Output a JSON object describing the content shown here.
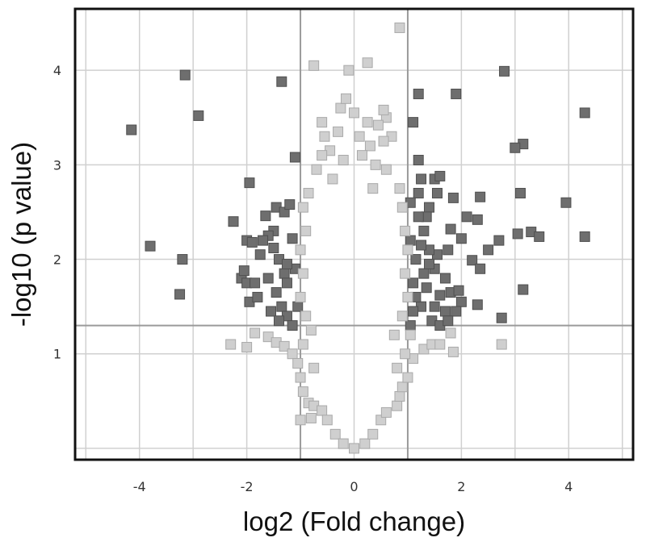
{
  "chart_data": {
    "type": "scatter",
    "title": "",
    "xlabel": "log2 (Fold change)",
    "ylabel": "-log10 (p value)",
    "xlim": [
      -5.2,
      5.2
    ],
    "ylim": [
      -0.12,
      4.65
    ],
    "xticks": [
      -4,
      -2,
      0,
      2,
      4
    ],
    "xtick_labels": [
      "-4",
      "-2",
      "0",
      "2",
      "4"
    ],
    "yticks": [
      1,
      2,
      3,
      4
    ],
    "ytick_labels": [
      "1",
      "2",
      "3",
      "4"
    ],
    "grid": true,
    "legend": "none",
    "threshold_lines": {
      "x": [
        -1,
        1
      ],
      "y": 1.3
    },
    "colors": {
      "significant": "#6e6e6e",
      "not_significant": "#cfcfcf",
      "grid": "#d0d0d0",
      "threshold": "#9a9a9a",
      "frame": "#111111"
    },
    "series": [
      {
        "values_xy": [
          [
            -4.15,
            3.37
          ],
          [
            -3.15,
            3.95
          ],
          [
            -2.9,
            3.52
          ],
          [
            -3.8,
            2.14
          ],
          [
            -3.2,
            2.0
          ],
          [
            -3.25,
            1.63
          ],
          [
            -2.25,
            2.4
          ],
          [
            -1.95,
            2.81
          ],
          [
            -1.35,
            3.88
          ],
          [
            -1.1,
            3.08
          ],
          [
            -2.0,
            2.2
          ],
          [
            -1.9,
            2.18
          ],
          [
            -1.65,
            2.46
          ],
          [
            -1.45,
            2.55
          ],
          [
            -1.3,
            2.5
          ],
          [
            -1.2,
            2.58
          ],
          [
            -1.5,
            2.3
          ],
          [
            -1.6,
            2.25
          ],
          [
            -1.75,
            2.05
          ],
          [
            -1.4,
            2.0
          ],
          [
            -1.3,
            1.85
          ],
          [
            -1.25,
            1.75
          ],
          [
            -1.6,
            1.8
          ],
          [
            -1.45,
            1.65
          ],
          [
            -1.35,
            1.5
          ],
          [
            -1.55,
            1.45
          ],
          [
            -1.25,
            1.4
          ],
          [
            -1.4,
            1.35
          ],
          [
            -1.15,
            1.3
          ],
          [
            -2.1,
            1.8
          ],
          [
            -2.0,
            1.75
          ],
          [
            -1.85,
            1.75
          ],
          [
            -2.05,
            1.88
          ],
          [
            -1.95,
            1.55
          ],
          [
            -1.8,
            1.6
          ],
          [
            -1.1,
            1.9
          ],
          [
            -1.15,
            2.22
          ],
          [
            -1.05,
            1.5
          ],
          [
            -1.25,
            1.95
          ],
          [
            -1.5,
            2.12
          ],
          [
            -1.7,
            2.2
          ],
          [
            2.8,
            3.99
          ],
          [
            4.3,
            3.55
          ],
          [
            1.9,
            3.75
          ],
          [
            1.2,
            3.75
          ],
          [
            1.1,
            3.45
          ],
          [
            3.15,
            3.22
          ],
          [
            3.0,
            3.18
          ],
          [
            1.2,
            3.05
          ],
          [
            1.25,
            2.85
          ],
          [
            1.5,
            2.85
          ],
          [
            1.6,
            2.88
          ],
          [
            1.85,
            2.65
          ],
          [
            2.35,
            2.66
          ],
          [
            3.1,
            2.7
          ],
          [
            3.95,
            2.6
          ],
          [
            2.1,
            2.45
          ],
          [
            2.3,
            2.42
          ],
          [
            2.5,
            2.1
          ],
          [
            2.7,
            2.2
          ],
          [
            3.05,
            2.27
          ],
          [
            3.3,
            2.29
          ],
          [
            3.45,
            2.24
          ],
          [
            4.3,
            2.24
          ],
          [
            2.0,
            2.22
          ],
          [
            1.75,
            2.1
          ],
          [
            1.55,
            2.05
          ],
          [
            1.4,
            2.1
          ],
          [
            1.25,
            2.15
          ],
          [
            1.15,
            2.0
          ],
          [
            1.3,
            1.85
          ],
          [
            1.5,
            1.9
          ],
          [
            1.7,
            1.8
          ],
          [
            2.2,
            1.99
          ],
          [
            2.35,
            1.9
          ],
          [
            1.1,
            1.75
          ],
          [
            1.35,
            1.7
          ],
          [
            1.6,
            1.62
          ],
          [
            1.8,
            1.65
          ],
          [
            1.95,
            1.67
          ],
          [
            2.0,
            1.55
          ],
          [
            1.5,
            1.5
          ],
          [
            1.25,
            1.5
          ],
          [
            1.1,
            1.45
          ],
          [
            1.7,
            1.45
          ],
          [
            1.9,
            1.45
          ],
          [
            2.3,
            1.52
          ],
          [
            1.45,
            1.35
          ],
          [
            1.6,
            1.3
          ],
          [
            1.75,
            1.35
          ],
          [
            2.75,
            1.38
          ],
          [
            3.15,
            1.68
          ],
          [
            1.2,
            2.7
          ],
          [
            1.4,
            2.55
          ],
          [
            1.05,
            2.6
          ],
          [
            1.3,
            2.3
          ],
          [
            1.05,
            1.3
          ],
          [
            1.15,
            1.6
          ],
          [
            1.35,
            2.45
          ],
          [
            1.05,
            2.2
          ],
          [
            1.8,
            2.32
          ],
          [
            1.55,
            2.7
          ],
          [
            1.2,
            2.45
          ],
          [
            1.4,
            1.95
          ]
        ]
      },
      {
        "values_xy": [
          [
            0.85,
            4.45
          ],
          [
            -0.75,
            4.05
          ],
          [
            0.25,
            4.08
          ],
          [
            -0.1,
            4.0
          ],
          [
            -0.25,
            3.6
          ],
          [
            0.0,
            3.55
          ],
          [
            -0.55,
            3.3
          ],
          [
            -0.6,
            3.45
          ],
          [
            0.6,
            3.5
          ],
          [
            0.45,
            3.42
          ],
          [
            0.7,
            3.3
          ],
          [
            0.55,
            3.58
          ],
          [
            -0.15,
            3.7
          ],
          [
            0.1,
            3.3
          ],
          [
            0.3,
            3.2
          ],
          [
            -0.45,
            3.15
          ],
          [
            -0.2,
            3.05
          ],
          [
            0.15,
            3.1
          ],
          [
            0.4,
            3.0
          ],
          [
            0.6,
            2.95
          ],
          [
            -0.7,
            2.95
          ],
          [
            0.85,
            2.75
          ],
          [
            -0.85,
            2.7
          ],
          [
            0.9,
            2.55
          ],
          [
            -0.95,
            2.55
          ],
          [
            0.95,
            2.3
          ],
          [
            -0.9,
            2.3
          ],
          [
            1.0,
            2.1
          ],
          [
            -1.0,
            2.1
          ],
          [
            0.95,
            1.85
          ],
          [
            -0.95,
            1.85
          ],
          [
            1.0,
            1.6
          ],
          [
            -1.0,
            1.6
          ],
          [
            0.9,
            1.4
          ],
          [
            -0.9,
            1.4
          ],
          [
            -2.3,
            1.1
          ],
          [
            -2.0,
            1.07
          ],
          [
            -1.85,
            1.22
          ],
          [
            -1.6,
            1.18
          ],
          [
            -1.45,
            1.12
          ],
          [
            -1.3,
            1.08
          ],
          [
            -1.15,
            1.0
          ],
          [
            -1.05,
            0.9
          ],
          [
            -1.0,
            0.75
          ],
          [
            -0.95,
            0.6
          ],
          [
            -0.85,
            0.48
          ],
          [
            -0.75,
            0.45
          ],
          [
            -1.0,
            0.3
          ],
          [
            -0.8,
            0.32
          ],
          [
            -0.6,
            0.4
          ],
          [
            -0.5,
            0.3
          ],
          [
            -0.35,
            0.15
          ],
          [
            -0.2,
            0.05
          ],
          [
            0.0,
            0.0
          ],
          [
            0.2,
            0.05
          ],
          [
            0.35,
            0.15
          ],
          [
            0.5,
            0.3
          ],
          [
            0.6,
            0.38
          ],
          [
            0.8,
            0.45
          ],
          [
            0.85,
            0.55
          ],
          [
            0.9,
            0.65
          ],
          [
            1.0,
            0.75
          ],
          [
            1.1,
            0.95
          ],
          [
            1.3,
            1.05
          ],
          [
            1.45,
            1.1
          ],
          [
            1.6,
            1.1
          ],
          [
            1.8,
            1.22
          ],
          [
            1.85,
            1.02
          ],
          [
            2.75,
            1.1
          ],
          [
            1.05,
            1.2
          ],
          [
            0.95,
            1.0
          ],
          [
            -0.95,
            1.1
          ],
          [
            -0.8,
            1.25
          ],
          [
            0.75,
            1.2
          ],
          [
            0.8,
            0.85
          ],
          [
            -0.75,
            0.85
          ],
          [
            -0.6,
            3.1
          ],
          [
            -0.3,
            3.35
          ],
          [
            0.25,
            3.45
          ],
          [
            0.55,
            3.25
          ],
          [
            -0.4,
            2.85
          ],
          [
            0.35,
            2.75
          ]
        ]
      }
    ]
  }
}
